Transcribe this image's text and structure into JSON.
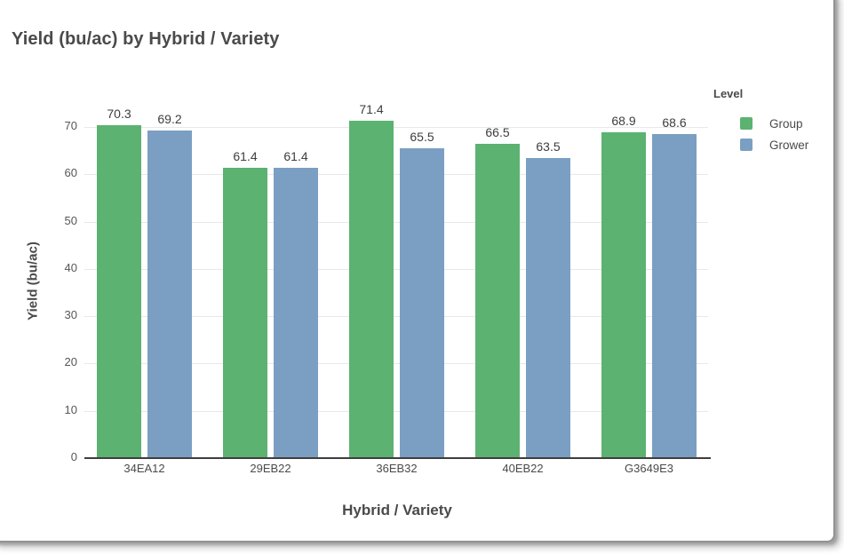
{
  "window": {
    "background": "#ffffff",
    "border_color": "#939393"
  },
  "title": "Yield (bu/ac) by Hybrid / Variety",
  "legend": {
    "title": "Level",
    "items": [
      {
        "label": "Group",
        "color": "#5CB271"
      },
      {
        "label": "Grower",
        "color": "#7B9FC2"
      }
    ]
  },
  "chart_data": {
    "type": "bar",
    "title": "Yield (bu/ac) by Hybrid / Variety",
    "xlabel": "Hybrid / Variety",
    "ylabel": "Yield (bu/ac)",
    "categories": [
      "34EA12",
      "29EB22",
      "36EB32",
      "40EB22",
      "G3649E3"
    ],
    "series": [
      {
        "name": "Group",
        "color": "#5CB271",
        "values": [
          70.3,
          61.4,
          71.4,
          66.5,
          68.9
        ]
      },
      {
        "name": "Grower",
        "color": "#7B9FC2",
        "values": [
          69.2,
          61.4,
          65.5,
          63.5,
          68.6
        ]
      }
    ],
    "ylim": [
      0,
      70
    ],
    "yticks": [
      0,
      10,
      20,
      30,
      40,
      50,
      60,
      70
    ],
    "grid": true,
    "value_labels": true,
    "legend_position": "right",
    "colors": {
      "gridline": "#e8e8e8",
      "axis_line": "#3e3e3e",
      "tick_text": "#565656",
      "value_text": "#3d3d3d",
      "title_text": "#4a4a4a"
    }
  }
}
